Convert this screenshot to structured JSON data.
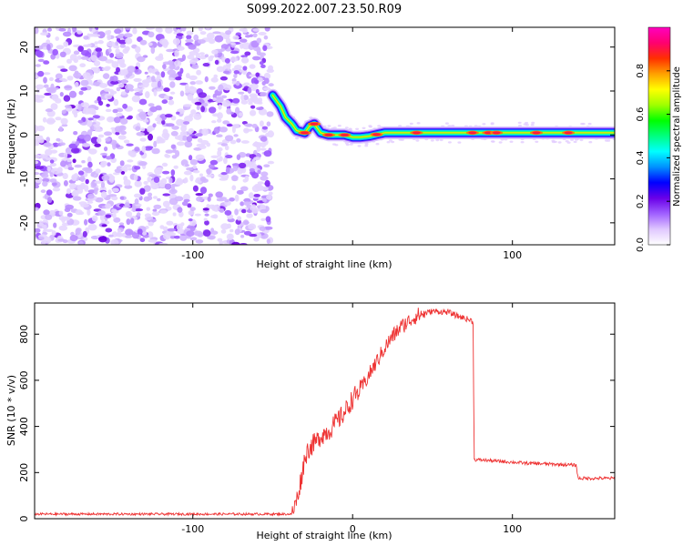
{
  "title": "S099.2022.007.23.50.R09",
  "chart_data": [
    {
      "type": "heatmap",
      "xlabel": "Height of straight line (km)",
      "ylabel": "Frequency (Hz)",
      "xlim": [
        -199,
        164
      ],
      "ylim": [
        -25,
        24.5
      ],
      "xticks": [
        -100,
        0,
        100
      ],
      "xtick_labels": [
        "-100",
        "",
        "100"
      ],
      "yticks": [
        -20,
        -10,
        0,
        10,
        20
      ],
      "colorbar": {
        "label": "Normalized spectral amplitude",
        "range": [
          0.0,
          1.0
        ],
        "ticks": [
          0.0,
          0.2,
          0.4,
          0.6,
          0.8
        ],
        "tick_labels": [
          "0.0",
          "0.2",
          "0.4",
          "0.6",
          "0.8"
        ],
        "colors": [
          "#ffffff",
          "#e0c8ff",
          "#a060ff",
          "#6a00e8",
          "#0000ff",
          "#0090ff",
          "#00ffff",
          "#00ff80",
          "#00ff00",
          "#a0ff00",
          "#ffff00",
          "#ffa000",
          "#ff3000",
          "#ff0070",
          "#ff00c0"
        ]
      },
      "noise_region_x": [
        -199,
        -51
      ],
      "tone_track": {
        "x": [
          -50,
          -45,
          -42,
          -38,
          -35,
          -30,
          -27,
          -24,
          -20,
          -15,
          -10,
          -5,
          0,
          5,
          10,
          20,
          40,
          60,
          80,
          100,
          120,
          140,
          164
        ],
        "y": [
          9,
          6.5,
          4,
          2.5,
          1,
          0.5,
          2,
          2.5,
          0.5,
          0,
          0,
          0,
          -0.5,
          -0.5,
          -0.3,
          0.5,
          0.5,
          0.5,
          0.5,
          0.5,
          0.5,
          0.5,
          0.5
        ]
      },
      "hotspots_x": [
        -30,
        -24,
        -15,
        -5,
        15,
        40,
        75,
        85,
        90,
        115,
        135
      ]
    },
    {
      "type": "line",
      "xlabel": "Height of straight line (km)",
      "ylabel": "SNR (10 * v/v)",
      "xlim": [
        -199,
        164
      ],
      "ylim": [
        0,
        935
      ],
      "xticks": [
        -100,
        0,
        100
      ],
      "xtick_labels": [
        "-100",
        "0",
        "100"
      ],
      "yticks": [
        0,
        200,
        400,
        600,
        800
      ],
      "color": "#ee3333",
      "series": [
        {
          "x": [
            -199,
            -150,
            -100,
            -50,
            -38,
            -35,
            -32,
            -30,
            -28,
            -25,
            -22,
            -20,
            -15,
            -10,
            -5,
            0,
            5,
            10,
            15,
            20,
            25,
            30,
            40,
            50,
            60,
            65,
            70,
            74,
            75.5,
            76,
            80,
            90,
            100,
            110,
            120,
            130,
            140,
            141,
            142,
            145,
            150,
            160,
            164
          ],
          "y": [
            20,
            20,
            20,
            20,
            20,
            80,
            180,
            260,
            300,
            320,
            340,
            360,
            380,
            420,
            460,
            520,
            560,
            620,
            680,
            740,
            790,
            830,
            880,
            900,
            895,
            880,
            870,
            860,
            850,
            255,
            255,
            250,
            245,
            240,
            238,
            235,
            232,
            175,
            175,
            175,
            175,
            175,
            175
          ]
        }
      ]
    }
  ]
}
